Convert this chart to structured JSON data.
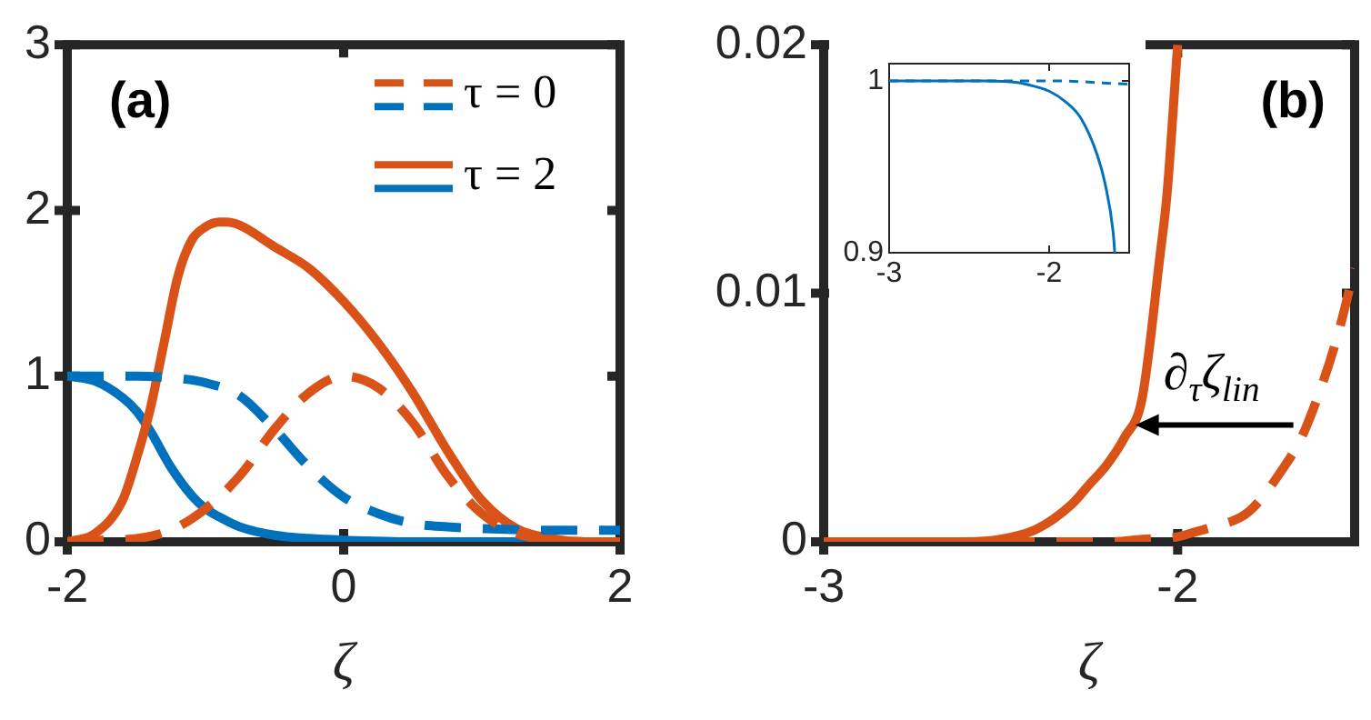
{
  "chart_data": [
    {
      "type": "line",
      "title": "(a)",
      "xlabel": "ζ",
      "xlim": [
        -2,
        2
      ],
      "xticks": [
        -2,
        0,
        2
      ],
      "ylim": [
        0,
        3
      ],
      "yticks": [
        0,
        1,
        2,
        3
      ],
      "grid": false,
      "legend": "top right",
      "series": [
        {
          "name": "τ = 0",
          "color": "#d95319",
          "line_style": "dashed",
          "x": [
            -2,
            -1.75,
            -1.5,
            -1.25,
            -1,
            -0.75,
            -0.5,
            -0.25,
            0,
            0.25,
            0.5,
            0.75,
            1,
            1.25,
            1.5,
            1.75,
            2
          ],
          "values": [
            0,
            0.01,
            0.02,
            0.07,
            0.2,
            0.4,
            0.68,
            0.9,
            1,
            0.93,
            0.72,
            0.4,
            0.17,
            0.05,
            0.01,
            0,
            0
          ]
        },
        {
          "color": "#0072bd",
          "line_style": "dashed",
          "x": [
            -2,
            -1.5,
            -1.25,
            -1,
            -0.75,
            -0.5,
            -0.25,
            0,
            0.25,
            0.5,
            0.75,
            1,
            1.5,
            2
          ],
          "values": [
            1,
            1,
            0.99,
            0.96,
            0.88,
            0.68,
            0.45,
            0.27,
            0.17,
            0.11,
            0.09,
            0.08,
            0.07,
            0.07
          ]
        },
        {
          "name": "τ = 2",
          "color": "#d95319",
          "line_style": "solid",
          "x": [
            -2,
            -1.8,
            -1.6,
            -1.5,
            -1.4,
            -1.3,
            -1.2,
            -1.1,
            -1,
            -0.9,
            -0.85,
            -0.75,
            -0.5,
            -0.25,
            0,
            0.25,
            0.5,
            0.75,
            1,
            1.25,
            1.5,
            1.75,
            2
          ],
          "values": [
            0,
            0.05,
            0.25,
            0.5,
            0.8,
            1.2,
            1.6,
            1.82,
            1.9,
            1.93,
            1.93,
            1.91,
            1.78,
            1.65,
            1.45,
            1.2,
            0.9,
            0.55,
            0.25,
            0.08,
            0.02,
            0,
            0
          ]
        },
        {
          "color": "#0072bd",
          "line_style": "solid",
          "x": [
            -2,
            -1.8,
            -1.6,
            -1.5,
            -1.4,
            -1.25,
            -1.1,
            -1,
            -0.9,
            -0.75,
            -0.5,
            -0.25,
            0,
            0.5,
            1,
            1.5,
            2
          ],
          "values": [
            1,
            0.97,
            0.87,
            0.79,
            0.67,
            0.45,
            0.28,
            0.2,
            0.15,
            0.09,
            0.04,
            0.02,
            0.01,
            0,
            0,
            0,
            0
          ]
        }
      ]
    },
    {
      "type": "line",
      "title": "(b)",
      "xlabel": "ζ",
      "xlim": [
        -3,
        -1.5
      ],
      "xticks": [
        -3,
        -2
      ],
      "ylim": [
        0,
        0.02
      ],
      "yticks": [
        0,
        0.01,
        0.02
      ],
      "grid": false,
      "annotations": [
        {
          "text": "∂$_{τ}$ζ$_{lin}$",
          "x": -2.12,
          "y": 0.0047
        }
      ],
      "series": [
        {
          "color": "#d95319",
          "line_style": "solid",
          "x": [
            -3,
            -2.6,
            -2.5,
            -2.4,
            -2.3,
            -2.25,
            -2.2,
            -2.15,
            -2.1,
            -2.05,
            -2.03,
            -2.0
          ],
          "values": [
            0,
            0,
            0.0001,
            0.0005,
            0.0015,
            0.0023,
            0.0031,
            0.0042,
            0.0058,
            0.0115,
            0.014,
            0.02
          ]
        },
        {
          "color": "#d95319",
          "line_style": "dashed",
          "x": [
            -3,
            -2.2,
            -2.1,
            -2,
            -1.95,
            -1.9,
            -1.8,
            -1.7,
            -1.65,
            -1.6,
            -1.55,
            -1.5
          ],
          "values": [
            0,
            0,
            0.0001,
            0.0002,
            0.0004,
            0.0006,
            0.0012,
            0.003,
            0.0042,
            0.006,
            0.0082,
            0.011
          ]
        }
      ]
    },
    {
      "type": "line",
      "xlim": [
        -3,
        -1.5
      ],
      "xticks": [
        -3,
        -2
      ],
      "ylim": [
        0.9,
        1.01
      ],
      "yticks": [
        0.9,
        1
      ],
      "grid": false,
      "series": [
        {
          "color": "#0072bd",
          "line_style": "solid",
          "x": [
            -3,
            -2.4,
            -2.2,
            -2.1,
            -2,
            -1.9,
            -1.8,
            -1.7,
            -1.65,
            -1.6,
            -1.59
          ],
          "values": [
            1,
            1,
            0.999,
            0.997,
            0.994,
            0.988,
            0.978,
            0.957,
            0.94,
            0.912,
            0.9
          ]
        },
        {
          "color": "#0072bd",
          "line_style": "dashed",
          "x": [
            -3,
            -2,
            -1.5
          ],
          "values": [
            1,
            1,
            0.998
          ]
        }
      ]
    }
  ]
}
